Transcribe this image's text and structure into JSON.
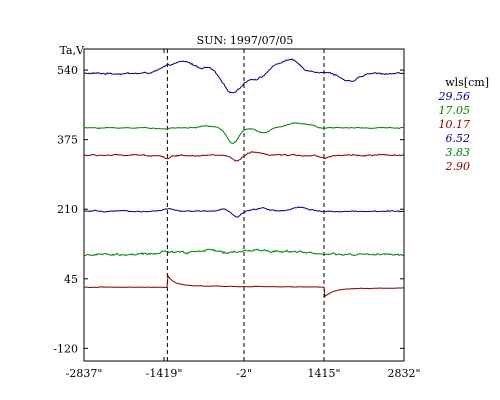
{
  "chart_data": {
    "type": "line",
    "title": "SUN: 1997/07/05",
    "ylabel": "Ta,V",
    "xlabel": "",
    "x_ticks": [
      {
        "value": -2837,
        "label": "-2837\""
      },
      {
        "value": -1419,
        "label": "-1419\""
      },
      {
        "value": -2,
        "label": "-2\""
      },
      {
        "value": 1415,
        "label": "1415\""
      },
      {
        "value": 2832,
        "label": "2832\""
      }
    ],
    "y_ticks": [
      {
        "value": 540,
        "label": "540"
      },
      {
        "value": 375,
        "label": "375"
      },
      {
        "value": 210,
        "label": "210"
      },
      {
        "value": 45,
        "label": "45"
      },
      {
        "value": -120,
        "label": "-120"
      }
    ],
    "xlim": [
      -2837,
      2832
    ],
    "ylim": [
      -150,
      590
    ],
    "vlines": [
      -1360,
      -2,
      1415
    ],
    "legend_title": "wls[cm]",
    "series": [
      {
        "name": "29.56",
        "color": "#000080",
        "baseline": 532,
        "noise": 2.5,
        "features": [
          [
            -1300,
            17,
            180
          ],
          [
            -1000,
            22,
            160
          ],
          [
            -600,
            14,
            130
          ],
          [
            -210,
            -45,
            170
          ],
          [
            250,
            -12,
            130
          ],
          [
            600,
            20,
            150
          ],
          [
            860,
            26,
            130
          ],
          [
            1200,
            5,
            200
          ],
          [
            1880,
            -20,
            140
          ]
        ]
      },
      {
        "name": "17.05",
        "color": "#008000",
        "baseline": 403,
        "noise": 1.3,
        "features": [
          [
            -1430,
            -3,
            80
          ],
          [
            -650,
            4,
            130
          ],
          [
            -200,
            -38,
            100
          ],
          [
            340,
            -12,
            110
          ],
          [
            900,
            12,
            160
          ],
          [
            1180,
            5,
            80
          ]
        ]
      },
      {
        "name": "10.17",
        "color": "#800000",
        "baseline": 338,
        "noise": 2.0,
        "features": [
          [
            -1360,
            -7,
            70
          ],
          [
            -130,
            -14,
            90
          ],
          [
            170,
            7,
            110
          ],
          [
            1415,
            -6,
            80
          ]
        ]
      },
      {
        "name": "6.52",
        "color": "#000080",
        "baseline": 205,
        "noise": 1.8,
        "features": [
          [
            -1360,
            6,
            90
          ],
          [
            -380,
            5,
            90
          ],
          [
            -130,
            -14,
            70
          ],
          [
            310,
            8,
            120
          ],
          [
            980,
            9,
            140
          ]
        ]
      },
      {
        "name": "3.83",
        "color": "#008000",
        "baseline": 102,
        "noise": 3.5,
        "features": [
          [
            -1350,
            7,
            200
          ],
          [
            -700,
            11,
            200
          ],
          [
            200,
            11,
            350
          ],
          [
            950,
            8,
            200
          ]
        ]
      },
      {
        "name": "2.90",
        "color": "#800000",
        "baseline": 25,
        "noise": 0.7,
        "features": [],
        "steps": [
          [
            -1360,
            25,
            4,
            120
          ],
          [
            1415,
            -20,
            -5,
            140
          ]
        ]
      }
    ]
  }
}
